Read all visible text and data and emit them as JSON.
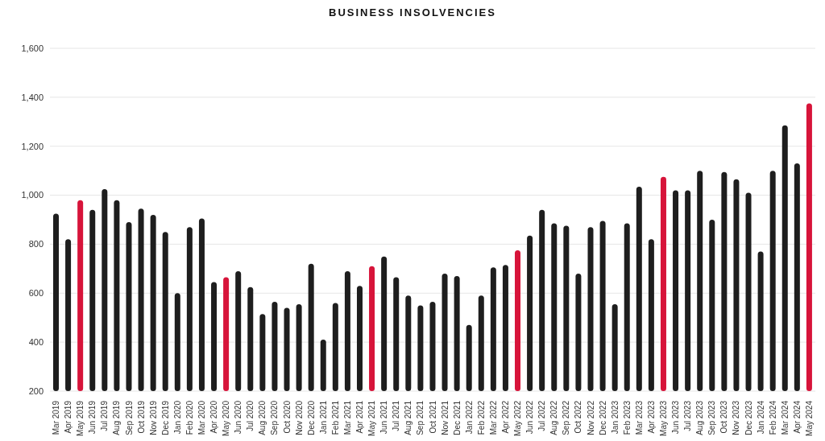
{
  "chart_data": {
    "type": "bar",
    "title": "BUSINESS INSOLVENCIES",
    "categories": [
      "Mar 2019",
      "Apr 2019",
      "May 2019",
      "Jun 2019",
      "Jul 2019",
      "Aug 2019",
      "Sep 2019",
      "Oct 2019",
      "Nov 2019",
      "Dec 2019",
      "Jan 2020",
      "Feb 2020",
      "Mar 2020",
      "Apr 2020",
      "May 2020",
      "Jun 2020",
      "Jul 2020",
      "Aug 2020",
      "Sep 2020",
      "Oct 2020",
      "Nov 2020",
      "Dec 2020",
      "Jan 2021",
      "Feb 2021",
      "Mar 2021",
      "Apr 2021",
      "May 2021",
      "Jun 2021",
      "Jul 2021",
      "Aug 2021",
      "Sep 2021",
      "Oct 2021",
      "Nov 2021",
      "Dec 2021",
      "Jan 2022",
      "Feb 2022",
      "Mar 2022",
      "Apr 2022",
      "May 2022",
      "Jun 2022",
      "Jul 2022",
      "Aug 2022",
      "Sep 2022",
      "Oct 2022",
      "Nov 2022",
      "Dec 2022",
      "Jan 2023",
      "Feb 2023",
      "Mar 2023",
      "Apr 2023",
      "May 2023",
      "Jun 2023",
      "Jul 2023",
      "Aug 2023",
      "Sep 2023",
      "Oct 2023",
      "Nov 2023",
      "Dec 2023",
      "Jan 2024",
      "Feb 2024",
      "Mar 2024",
      "Apr 2024",
      "May 2024"
    ],
    "values": [
      925,
      820,
      980,
      940,
      1025,
      980,
      890,
      945,
      920,
      850,
      600,
      870,
      905,
      645,
      665,
      690,
      625,
      515,
      565,
      540,
      555,
      720,
      410,
      560,
      690,
      630,
      710,
      750,
      665,
      590,
      550,
      565,
      680,
      670,
      470,
      590,
      705,
      715,
      775,
      835,
      940,
      885,
      875,
      680,
      870,
      895,
      555,
      885,
      1035,
      820,
      1075,
      1020,
      1020,
      1100,
      900,
      1095,
      1065,
      1010,
      770,
      1100,
      1285,
      1130,
      1375
    ],
    "colors": [
      "#1e1e1e",
      "#1e1e1e",
      "#d7143a",
      "#1e1e1e",
      "#1e1e1e",
      "#1e1e1e",
      "#1e1e1e",
      "#1e1e1e",
      "#1e1e1e",
      "#1e1e1e",
      "#1e1e1e",
      "#1e1e1e",
      "#1e1e1e",
      "#1e1e1e",
      "#d7143a",
      "#1e1e1e",
      "#1e1e1e",
      "#1e1e1e",
      "#1e1e1e",
      "#1e1e1e",
      "#1e1e1e",
      "#1e1e1e",
      "#1e1e1e",
      "#1e1e1e",
      "#1e1e1e",
      "#1e1e1e",
      "#d7143a",
      "#1e1e1e",
      "#1e1e1e",
      "#1e1e1e",
      "#1e1e1e",
      "#1e1e1e",
      "#1e1e1e",
      "#1e1e1e",
      "#1e1e1e",
      "#1e1e1e",
      "#1e1e1e",
      "#1e1e1e",
      "#d7143a",
      "#1e1e1e",
      "#1e1e1e",
      "#1e1e1e",
      "#1e1e1e",
      "#1e1e1e",
      "#1e1e1e",
      "#1e1e1e",
      "#1e1e1e",
      "#1e1e1e",
      "#1e1e1e",
      "#1e1e1e",
      "#d7143a",
      "#1e1e1e",
      "#1e1e1e",
      "#1e1e1e",
      "#1e1e1e",
      "#1e1e1e",
      "#1e1e1e",
      "#1e1e1e",
      "#1e1e1e",
      "#1e1e1e",
      "#1e1e1e",
      "#1e1e1e",
      "#d7143a"
    ],
    "ylim": [
      200,
      1600
    ],
    "yticks": [
      200,
      400,
      600,
      800,
      {
        "value": 1000,
        "label": "1,000"
      },
      {
        "value": 1200,
        "label": "1,200"
      },
      {
        "value": 1400,
        "label": "1,400"
      },
      {
        "value": 1600,
        "label": "1,600"
      }
    ],
    "grid": "y",
    "legend": false
  }
}
